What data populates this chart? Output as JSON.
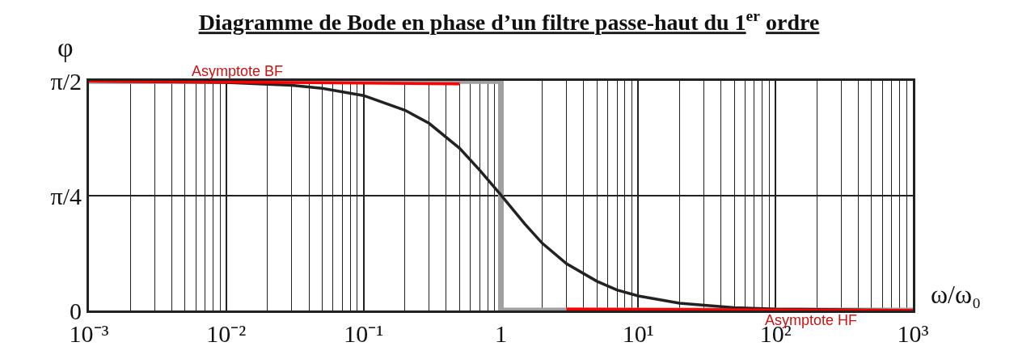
{
  "chart_data": {
    "type": "line",
    "title": "Diagramme de Bode en phase d’un filtre passe-haut du 1$^{er}$ ordre",
    "xlabel": "ω/ω₀",
    "ylabel": "φ",
    "log": "x",
    "grid": true,
    "marker": "none",
    "xlim": [
      0.001,
      1000
    ],
    "ylim": [
      0,
      1.5708
    ],
    "xticks": [
      {
        "value": 0.001,
        "label": "10⁻³"
      },
      {
        "value": 0.01,
        "label": "10⁻²"
      },
      {
        "value": 0.1,
        "label": "10⁻¹"
      },
      1,
      {
        "value": 10,
        "label": "10¹"
      },
      {
        "value": 100,
        "label": "10²"
      },
      {
        "value": 1000,
        "label": "10³"
      }
    ],
    "yticks": [
      0,
      {
        "value": 0.7854,
        "label": "π/4"
      },
      {
        "value": 1.5708,
        "label": "π/2"
      }
    ],
    "series": [
      {
        "color": "#a0a0a0",
        "x": [
          0.001,
          1,
          1,
          1000
        ],
        "values": [
          1.57,
          1.57,
          0,
          0
        ]
      },
      {
        "color": "#222222",
        "x": [
          0.001,
          0.01,
          0.03,
          0.05,
          0.1,
          0.2,
          0.3,
          0.5,
          0.7,
          1,
          1.5,
          2,
          3,
          5,
          7,
          10,
          20,
          50,
          100,
          1000
        ],
        "values": [
          1.57,
          1.56,
          1.54,
          1.52,
          1.47,
          1.37,
          1.28,
          1.11,
          0.96,
          0.79,
          0.59,
          0.46,
          0.32,
          0.2,
          0.14,
          0.1,
          0.05,
          0.02,
          0.01,
          0
        ]
      },
      {
        "color": "#ff0000",
        "x": [
          0.001,
          0.5
        ],
        "values": [
          1.57,
          1.55
        ]
      },
      {
        "color": "#ff0000",
        "x": [
          3,
          1000
        ],
        "values": [
          0.01,
          0
        ]
      }
    ],
    "annotations": [
      {
        "text": "Asymptote BF",
        "x": 0.012,
        "y": 1.57
      },
      {
        "text": "Asymptote HF",
        "x": 180,
        "y": 0
      }
    ]
  }
}
